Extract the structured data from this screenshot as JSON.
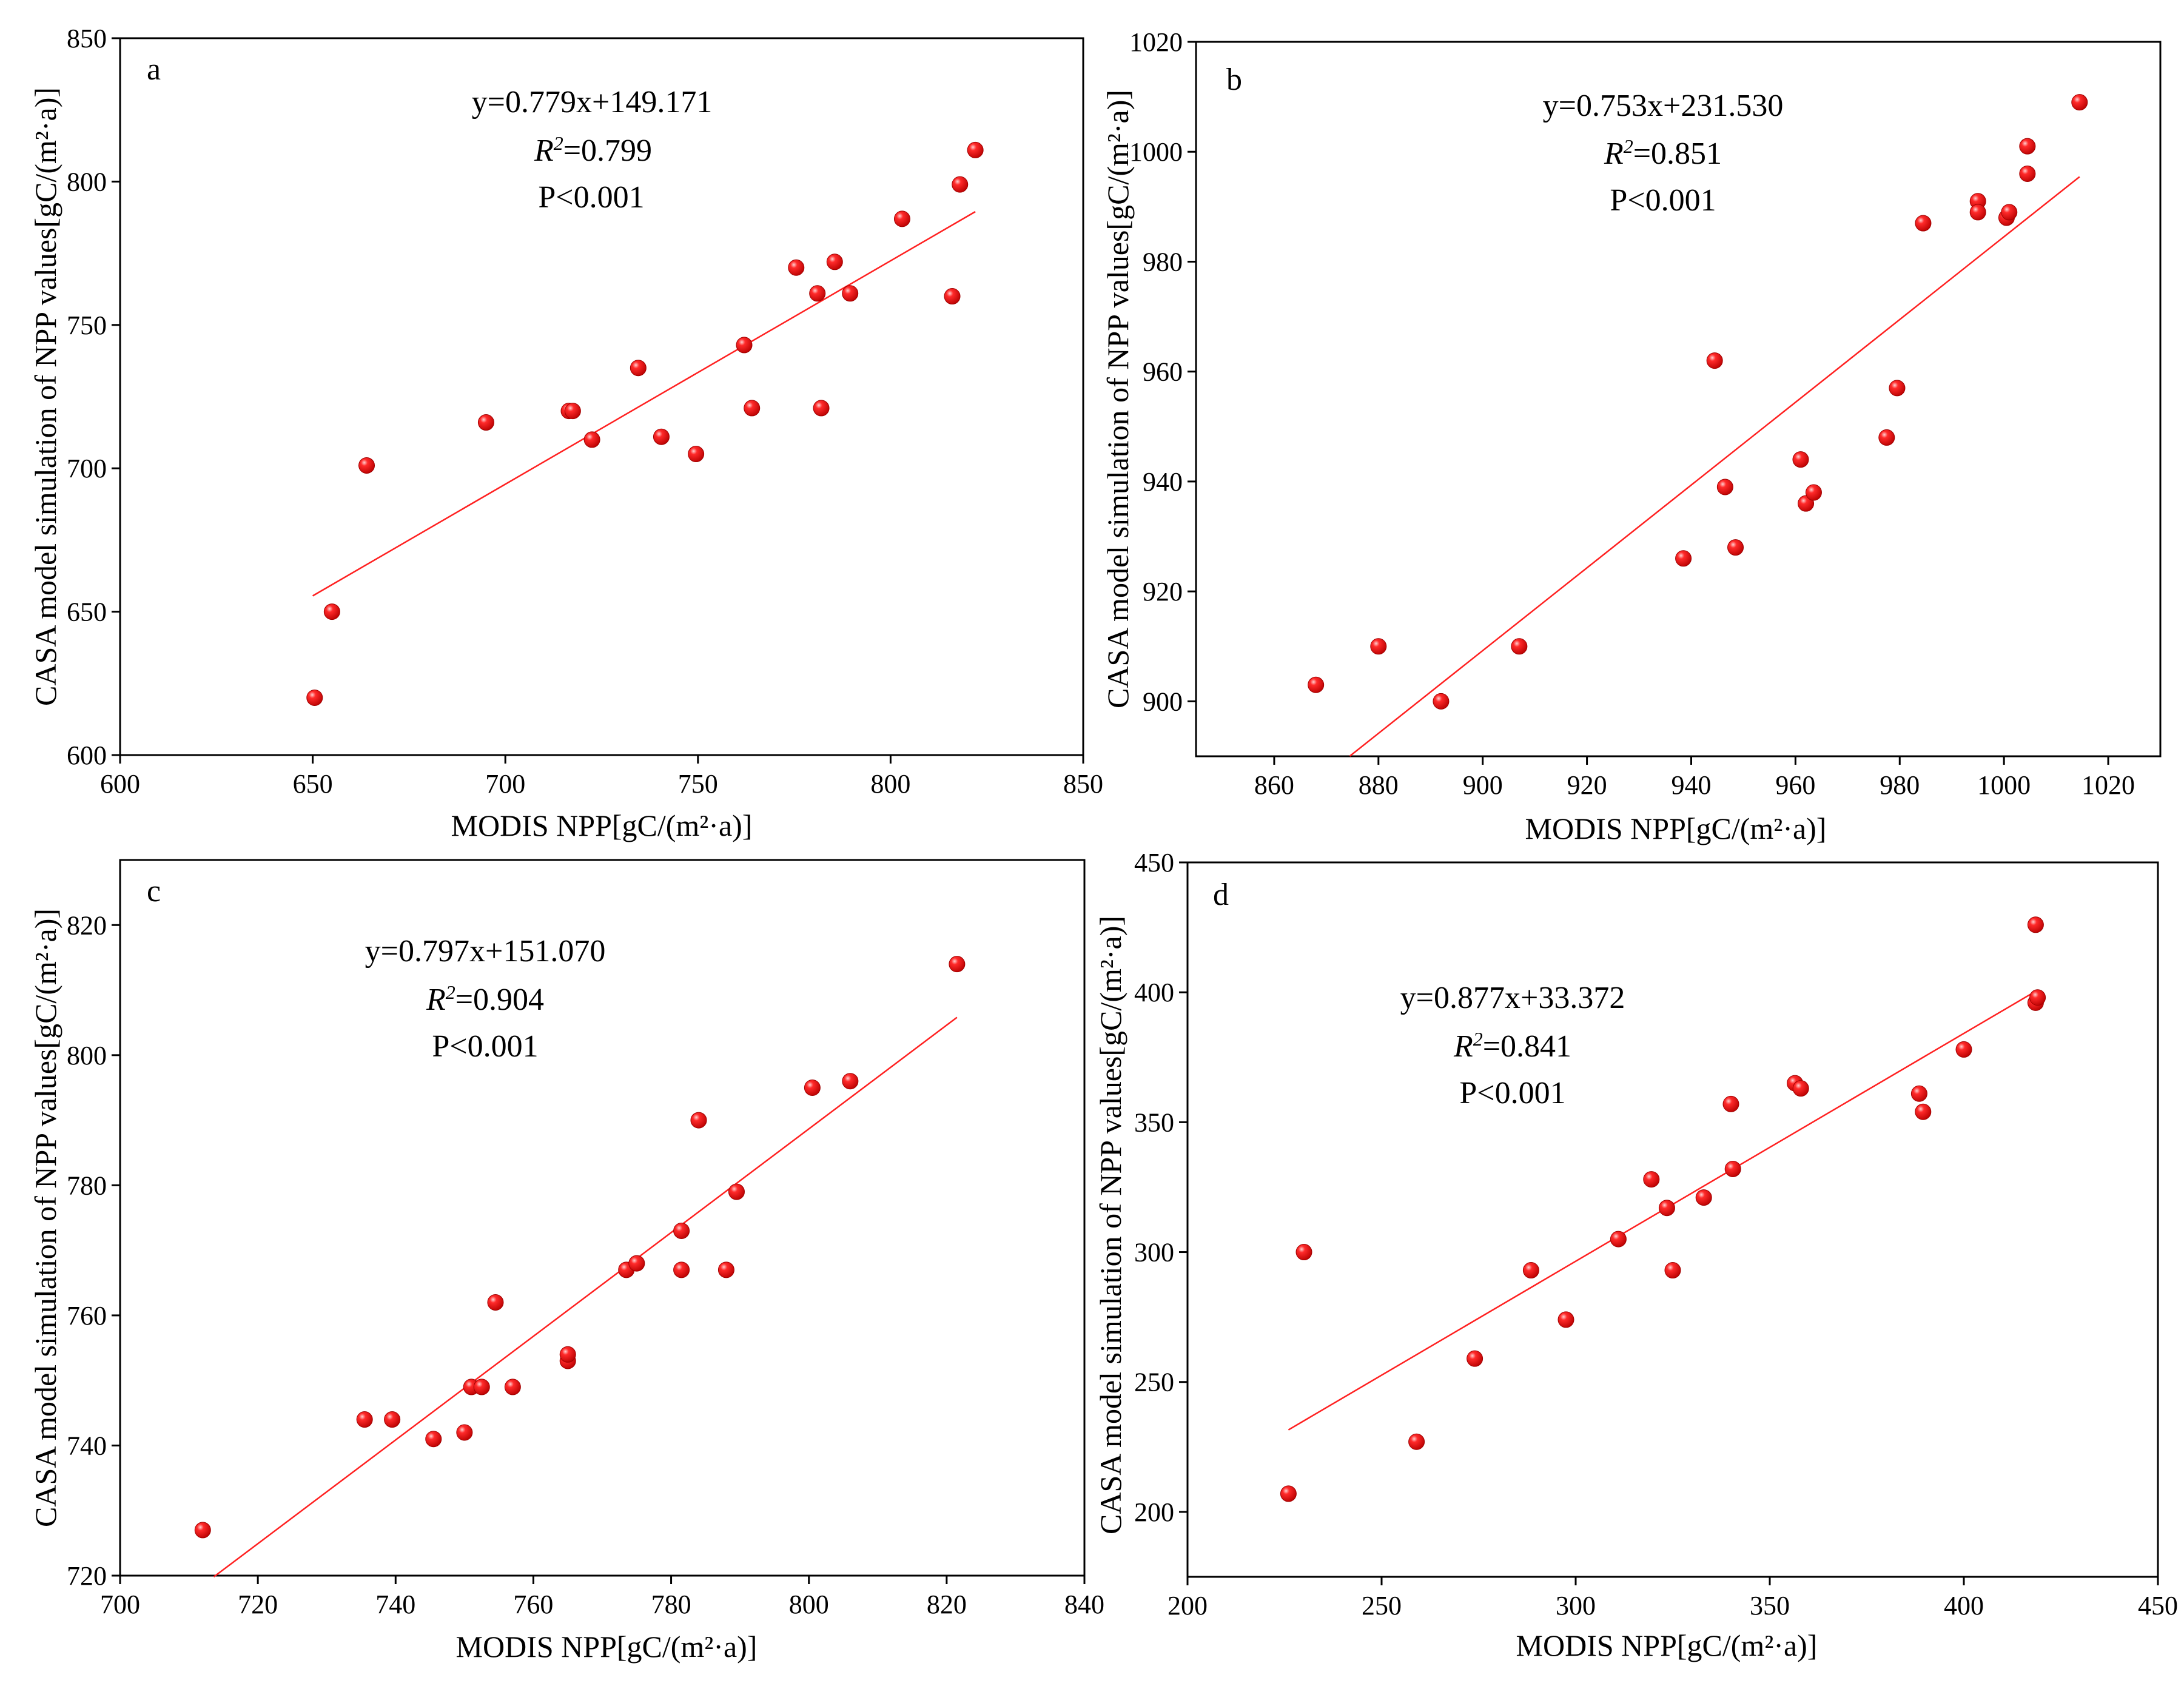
{
  "figure": {
    "marker_color": "#e8000b",
    "fit_color": "#ff2020",
    "axis_color": "#000000"
  },
  "chart_data": [
    {
      "type": "scatter",
      "panel_label": "a",
      "equation": "y=0.779x+149.171",
      "r2_prefix": "R",
      "r2_sup": "2",
      "r2_value": "=0.799",
      "p_text": "P<0.001",
      "xlabel": "MODIS NPP[gC/(m²·a)]",
      "ylabel": "CASA model simulation of NPP values[gC/(m²·a)]",
      "xlim": [
        600,
        850
      ],
      "ylim": [
        600,
        850
      ],
      "xticks": [
        600,
        650,
        700,
        750,
        800,
        850
      ],
      "yticks": [
        600,
        650,
        700,
        750,
        800,
        850
      ],
      "fit": {
        "slope": 0.779,
        "intercept": 149.171,
        "x_range": [
          650,
          822
        ]
      },
      "points": [
        [
          650.5,
          620
        ],
        [
          655,
          650
        ],
        [
          664,
          701
        ],
        [
          695,
          716
        ],
        [
          716.5,
          720
        ],
        [
          717.5,
          720
        ],
        [
          722.5,
          710
        ],
        [
          734.5,
          735
        ],
        [
          740.5,
          711
        ],
        [
          749.5,
          705
        ],
        [
          762,
          743
        ],
        [
          764,
          721
        ],
        [
          775.5,
          770
        ],
        [
          781,
          761
        ],
        [
          782,
          721
        ],
        [
          785.5,
          772
        ],
        [
          789.5,
          761
        ],
        [
          803,
          787
        ],
        [
          816,
          760
        ],
        [
          818,
          799
        ],
        [
          822,
          811
        ]
      ]
    },
    {
      "type": "scatter",
      "panel_label": "b",
      "equation": "y=0.753x+231.530",
      "r2_prefix": "R",
      "r2_sup": "2",
      "r2_value": "=0.851",
      "p_text": "P<0.001",
      "xlabel": "MODIS NPP[gC/(m²·a)]",
      "ylabel": "CASA model simulation of NPP values[gC/(m²·a)]",
      "xlim": [
        845,
        1030
      ],
      "ylim": [
        890,
        1020
      ],
      "xticks": [
        860,
        880,
        900,
        920,
        940,
        960,
        980,
        1000,
        1020
      ],
      "yticks": [
        900,
        920,
        940,
        960,
        980,
        1000,
        1020
      ],
      "fit": {
        "slope": 0.753,
        "intercept": 231.53,
        "x_range": [
          874.5,
          1014.5
        ]
      },
      "points": [
        [
          868,
          903
        ],
        [
          880,
          910
        ],
        [
          892,
          900
        ],
        [
          907,
          910
        ],
        [
          938.5,
          926
        ],
        [
          944.5,
          962
        ],
        [
          946.5,
          939
        ],
        [
          948.5,
          928
        ],
        [
          961,
          944
        ],
        [
          962,
          936
        ],
        [
          963.5,
          938
        ],
        [
          977.5,
          948
        ],
        [
          979.5,
          957
        ],
        [
          984.5,
          987
        ],
        [
          995,
          991
        ],
        [
          995,
          989
        ],
        [
          1000.5,
          988
        ],
        [
          1001,
          989
        ],
        [
          1004.5,
          1001
        ],
        [
          1004.5,
          996
        ],
        [
          1014.5,
          1009
        ]
      ]
    },
    {
      "type": "scatter",
      "panel_label": "c",
      "equation": "y=0.797x+151.070",
      "r2_prefix": "R",
      "r2_sup": "2",
      "r2_value": "=0.904",
      "p_text": "P<0.001",
      "xlabel": "MODIS NPP[gC/(m²·a)]",
      "ylabel": "CASA model simulation of NPP values[gC/(m²·a)]",
      "xlim": [
        700,
        840
      ],
      "ylim": [
        720,
        830
      ],
      "xticks": [
        700,
        720,
        740,
        760,
        780,
        800,
        820,
        840
      ],
      "yticks": [
        720,
        740,
        760,
        780,
        800,
        820
      ],
      "fit": {
        "slope": 0.797,
        "intercept": 151.07,
        "x_range": [
          713.6,
          821.5
        ]
      },
      "points": [
        [
          712,
          727
        ],
        [
          735.5,
          744
        ],
        [
          739.5,
          744
        ],
        [
          745.5,
          741
        ],
        [
          750,
          742
        ],
        [
          751,
          749
        ],
        [
          752.5,
          749
        ],
        [
          754.5,
          762
        ],
        [
          757,
          749
        ],
        [
          765,
          753
        ],
        [
          765,
          754
        ],
        [
          773.5,
          767
        ],
        [
          775,
          768
        ],
        [
          781.5,
          767
        ],
        [
          781.5,
          773
        ],
        [
          784,
          790
        ],
        [
          788,
          767
        ],
        [
          789.5,
          779
        ],
        [
          800.5,
          795
        ],
        [
          806,
          796
        ],
        [
          821.5,
          814
        ]
      ]
    },
    {
      "type": "scatter",
      "panel_label": "d",
      "equation": "y=0.877x+33.372",
      "r2_prefix": "R",
      "r2_sup": "2",
      "r2_value": "=0.841",
      "p_text": "P<0.001",
      "xlabel": "MODIS NPP[gC/(m²·a)]",
      "ylabel": "CASA model simulation of NPP values[gC/(m²·a)]",
      "xlim": [
        200,
        450
      ],
      "ylim": [
        175,
        450
      ],
      "xticks": [
        200,
        250,
        300,
        350,
        400,
        450
      ],
      "yticks": [
        200,
        250,
        300,
        350,
        400,
        450
      ],
      "fit": {
        "slope": 0.877,
        "intercept": 33.372,
        "x_range": [
          226,
          419
        ]
      },
      "points": [
        [
          226,
          207
        ],
        [
          230,
          300
        ],
        [
          259,
          227
        ],
        [
          274,
          259
        ],
        [
          288.5,
          293
        ],
        [
          297.5,
          274
        ],
        [
          311,
          305
        ],
        [
          319.5,
          328
        ],
        [
          323.5,
          317
        ],
        [
          325,
          293
        ],
        [
          333,
          321
        ],
        [
          340,
          357
        ],
        [
          340.5,
          332
        ],
        [
          356.5,
          365
        ],
        [
          358,
          363
        ],
        [
          388.5,
          361
        ],
        [
          389.5,
          354
        ],
        [
          400,
          378
        ],
        [
          418.5,
          396
        ],
        [
          419,
          398
        ],
        [
          418.5,
          426
        ]
      ]
    }
  ]
}
